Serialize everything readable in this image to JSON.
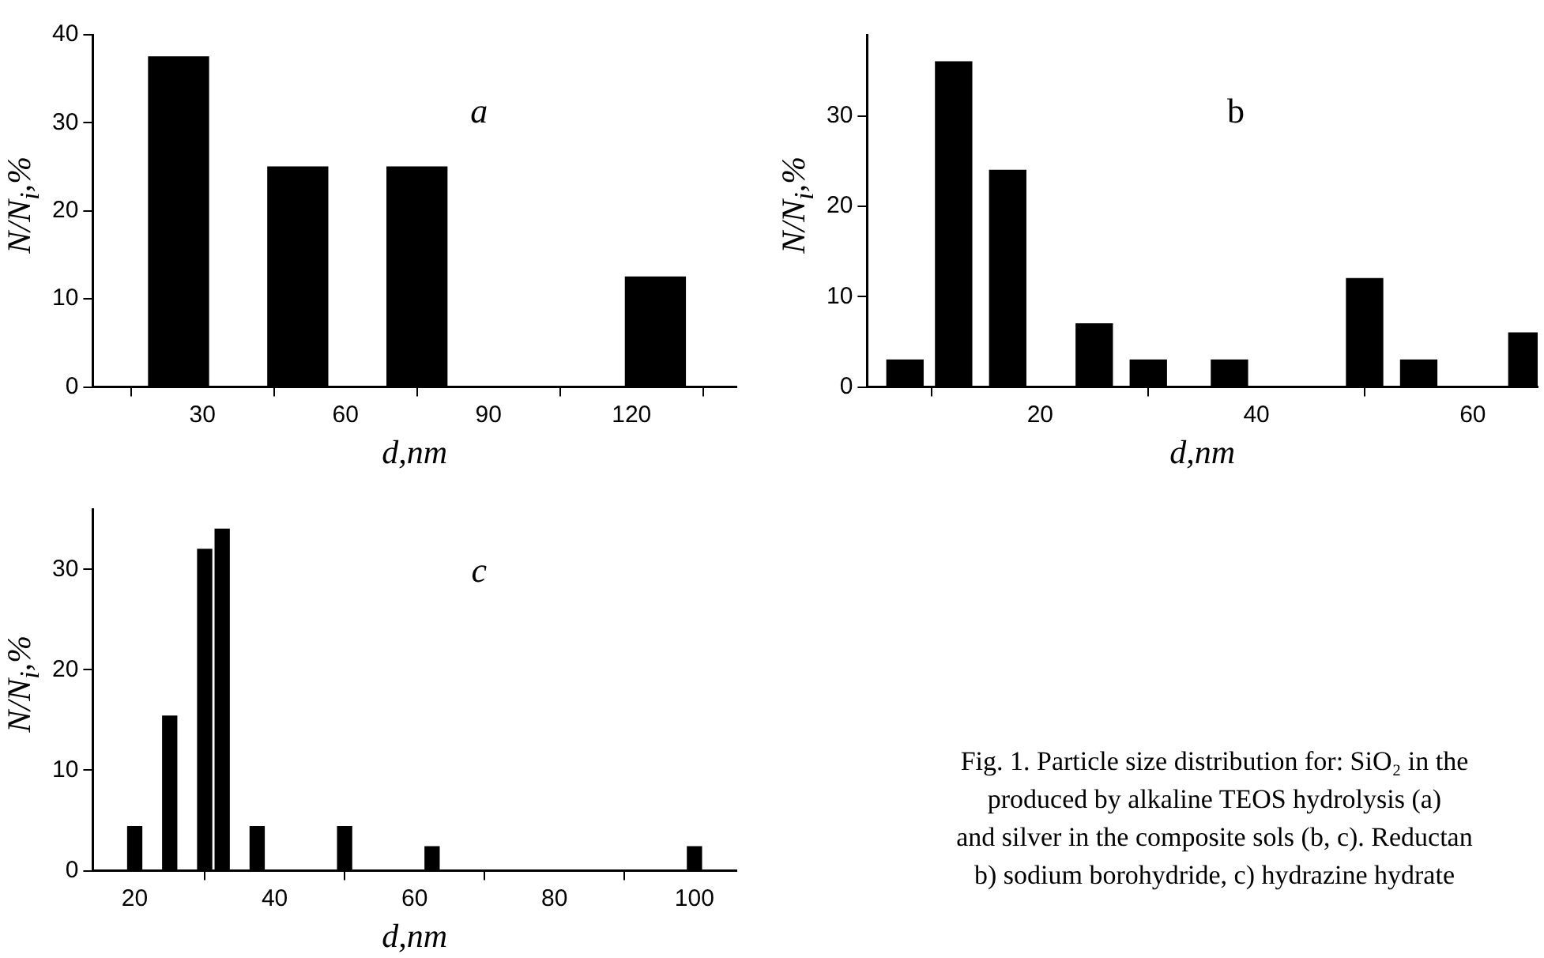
{
  "chart_data": [
    {
      "type": "bar",
      "x": [
        25,
        50,
        75,
        125
      ],
      "values": [
        37.5,
        25,
        25,
        12.5
      ],
      "color": "#000000",
      "xlim": [
        7,
        142
      ],
      "xticks": [
        30,
        60,
        90,
        120
      ],
      "ylim": [
        0,
        40
      ],
      "yticks": [
        0,
        10,
        20,
        30,
        40
      ],
      "xlabel": "d,nm",
      "ylabel": "N/N$_{i}$,%",
      "grid": false,
      "legend": false,
      "annotations": [
        "a"
      ]
    },
    {
      "type": "bar",
      "x": [
        7.5,
        12,
        17,
        25,
        30,
        37.5,
        50,
        55,
        65
      ],
      "values": [
        3,
        36,
        24,
        7,
        3,
        3,
        12,
        3,
        6
      ],
      "color": "#000000",
      "xlim": [
        4,
        66
      ],
      "xticks": [
        20,
        40,
        60
      ],
      "ylim": [
        0,
        39
      ],
      "yticks": [
        0,
        10,
        20,
        30
      ],
      "xlabel": "d,nm",
      "ylabel": "N/N$_{i}$,%",
      "grid": false,
      "legend": false,
      "annotations": [
        "b"
      ]
    },
    {
      "type": "bar",
      "x": [
        20,
        25,
        30,
        32.5,
        37.5,
        50,
        62.5,
        100
      ],
      "values": [
        4.4,
        15.4,
        32,
        34,
        4.4,
        4.4,
        2.4,
        2.4
      ],
      "color": "#000000",
      "xlim": [
        14,
        106
      ],
      "xticks": [
        20,
        40,
        60,
        80,
        100
      ],
      "ylim": [
        0,
        36
      ],
      "yticks": [
        0,
        10,
        20,
        30
      ],
      "xlabel": "d,nm",
      "ylabel": "N/N$_{i}$,%",
      "grid": false,
      "legend": false,
      "annotations": [
        "c",
        "Fig. 1. Particle size distribution for: SiO₂ in the",
        "produced by alkaline TEOS hydrolysis (a)",
        "and silver in the composite sols (b, c). Reductan",
        "b) sodium borohydride, c) hydrazine hydrate"
      ]
    }
  ]
}
